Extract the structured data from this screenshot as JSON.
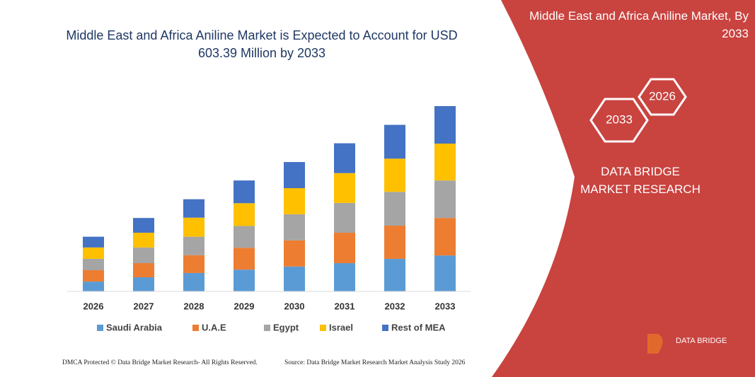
{
  "chart_data": {
    "type": "stacked-bar",
    "title": "Middle East and Africa Aniline Market is Expected to Account for USD 603.39 Million by 2033",
    "categories": [
      "2026",
      "2027",
      "2028",
      "2029",
      "2030",
      "2031",
      "2032",
      "2033"
    ],
    "series": [
      {
        "name": "Saudi Arabia",
        "color": "#5b9bd5",
        "values": [
          32,
          46,
          60,
          71,
          81,
          92,
          106,
          117
        ]
      },
      {
        "name": "U.A.E",
        "color": "#ed7d31",
        "values": [
          37,
          46,
          58,
          71,
          85,
          99,
          108,
          122
        ]
      },
      {
        "name": "Egypt",
        "color": "#a5a5a5",
        "values": [
          37,
          51,
          60,
          71,
          85,
          97,
          110,
          122
        ]
      },
      {
        "name": "Israel",
        "color": "#ffc000",
        "values": [
          37,
          48,
          62,
          74,
          85,
          97,
          108,
          120
        ]
      },
      {
        "name": "Rest of MEA",
        "color": "#4472c4",
        "values": [
          35,
          48,
          60,
          74,
          85,
          97,
          110,
          122
        ]
      }
    ],
    "legend": "bottom"
  },
  "panel": {
    "title": "Middle East and Africa Aniline Market, By 2033",
    "hexagons": [
      "2033",
      "2026"
    ],
    "brand": "DATA BRIDGE MARKET RESEARCH"
  },
  "logo": "DATA BRIDGE",
  "footer": {
    "left": "DMCA Protected © Data Bridge Market Research-  All Rights Reserved.",
    "right": "Source: Data Bridge Market Research  Market Analysis Study 2026"
  }
}
